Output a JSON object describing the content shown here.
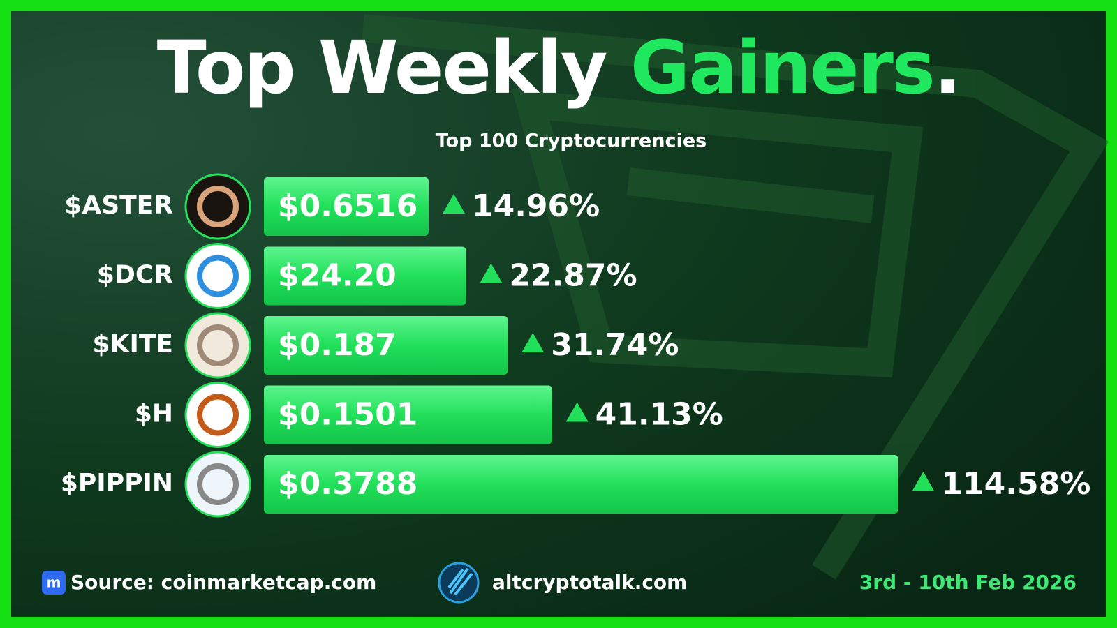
{
  "title": {
    "prefix": "Top Weekly",
    "highlight": "Gainers",
    "suffix": "."
  },
  "chart_data": {
    "type": "bar",
    "orientation": "horizontal",
    "subtitle": "Top 100 Cryptocurrencies",
    "categories": [
      "$ASTER",
      "$DCR",
      "$KITE",
      "$H",
      "$PIPPIN"
    ],
    "prices": [
      "$0.6516",
      "$24.20",
      "$0.187",
      "$0.1501",
      "$0.3788"
    ],
    "values": [
      14.96,
      22.87,
      31.74,
      41.13,
      114.58
    ],
    "value_labels": [
      "14.96%",
      "22.87%",
      "31.74%",
      "41.13%",
      "114.58%"
    ],
    "color": "#22e05a"
  },
  "footer": {
    "source": "Source: coinmarketcap.com",
    "site": "altcryptotalk.com",
    "date": "3rd - 10th Feb 2026"
  }
}
